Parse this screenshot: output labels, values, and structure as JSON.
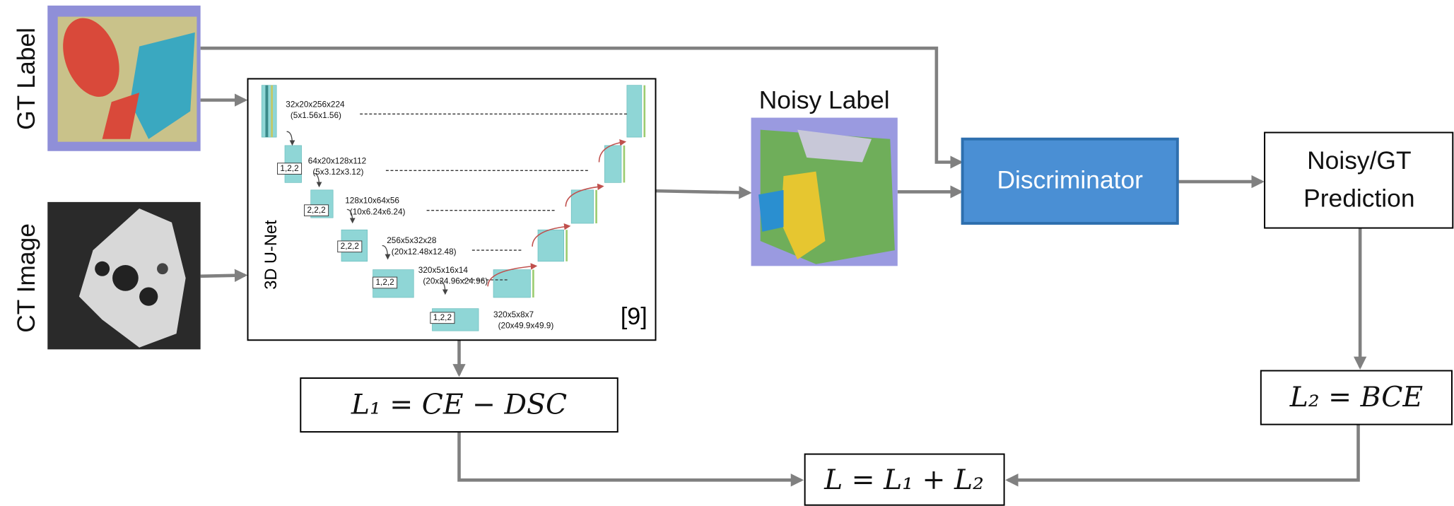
{
  "inputs": {
    "gt_label": "GT Label",
    "ct_image": "CT Image"
  },
  "unet": {
    "title": "3D U-Net",
    "citation": "[9]",
    "levels": [
      {
        "size": "32x20x256x224",
        "spacing": "(5x1.56x1.56)"
      },
      {
        "size": "64x20x128x112",
        "spacing": "(5x3.12x3.12)"
      },
      {
        "size": "128x10x64x56",
        "spacing": "(10x6.24x6.24)"
      },
      {
        "size": "256x5x32x28",
        "spacing": "(20x12.48x12.48)"
      },
      {
        "size": "320x5x16x14",
        "spacing": "(20x24.96x24.96)"
      },
      {
        "size": "320x5x8x7",
        "spacing": "(20x49.9x49.9)"
      }
    ],
    "strides": [
      "1,2,2",
      "2,2,2",
      "2,2,2",
      "1,2,2",
      "1,2,2"
    ]
  },
  "noisy_label": "Noisy Label",
  "discriminator": "Discriminator",
  "prediction": [
    "Noisy/GT",
    "Prediction"
  ],
  "losses": {
    "l1": "L₁ = CE − DSC",
    "l2": "L₂ = BCE",
    "total": "L = L₁ + L₂"
  }
}
